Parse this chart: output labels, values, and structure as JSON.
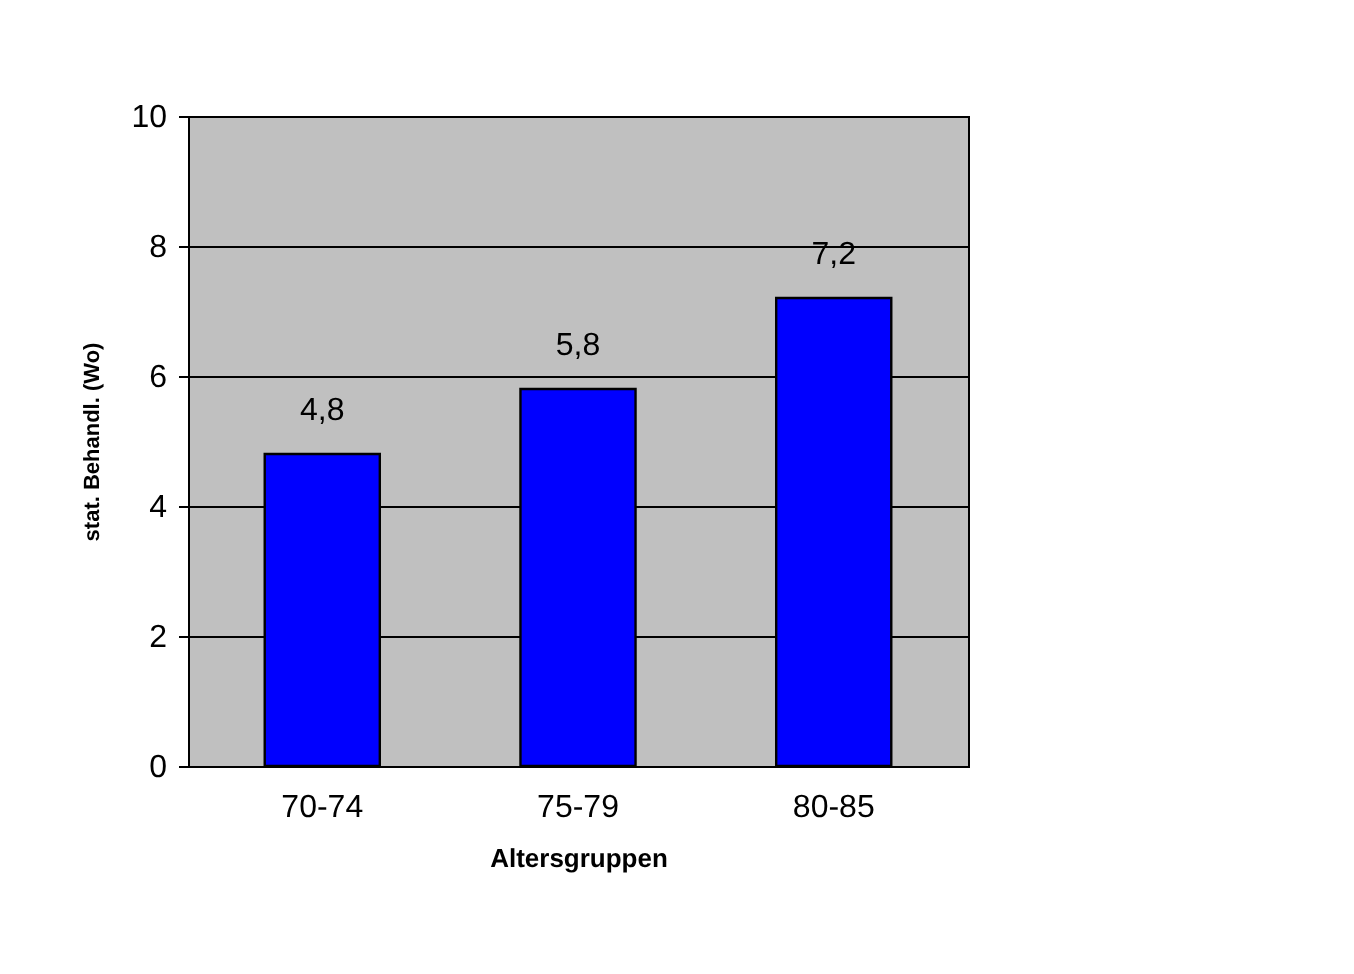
{
  "chart_data": {
    "type": "bar",
    "xlabel": "Altersgruppen",
    "ylabel": "stat. Behandl. (Wo)",
    "categories": [
      "70-74",
      "75-79",
      "80-85"
    ],
    "values": [
      4.8,
      5.8,
      7.2
    ],
    "value_labels": [
      "4,8",
      "5,8",
      "7,2"
    ],
    "color": "#0000ff",
    "ylim": [
      0,
      10
    ],
    "yticks": [
      0,
      2,
      4,
      6,
      8,
      10
    ],
    "grid": "y"
  }
}
